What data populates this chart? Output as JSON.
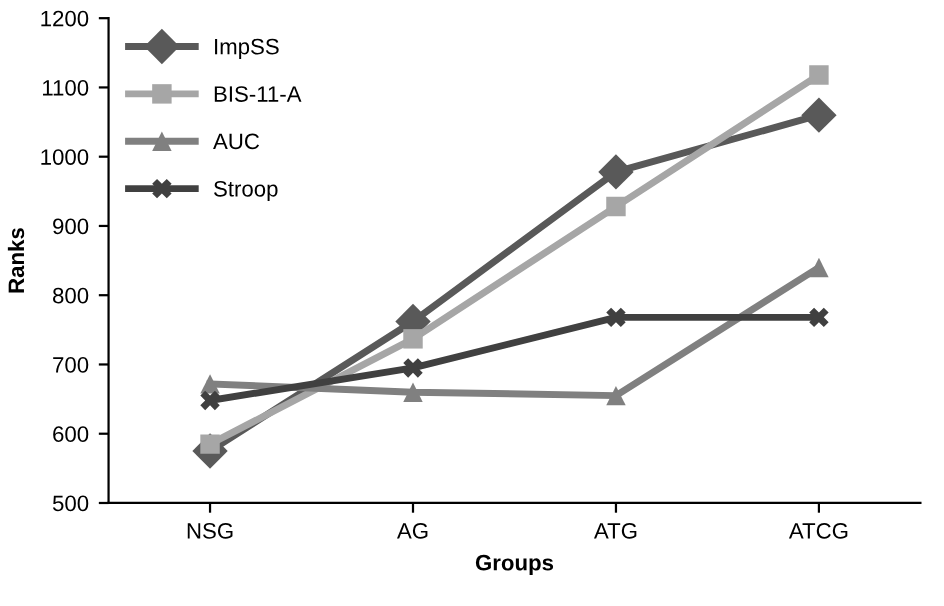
{
  "chart_data": {
    "type": "line",
    "xlabel": "Groups",
    "ylabel": "Ranks",
    "categories": [
      "NSG",
      "AG",
      "ATG",
      "ATCG"
    ],
    "series": [
      {
        "name": "ImpSS",
        "color": "#595959",
        "marker": "diamond",
        "values": [
          575,
          762,
          978,
          1060
        ]
      },
      {
        "name": "BIS-11-A",
        "color": "#a6a6a6",
        "marker": "square",
        "values": [
          585,
          737,
          928,
          1118
        ]
      },
      {
        "name": "AUC",
        "color": "#808080",
        "marker": "triangle",
        "values": [
          672,
          660,
          655,
          840
        ]
      },
      {
        "name": "Stroop",
        "color": "#404040",
        "marker": "cross",
        "values": [
          648,
          695,
          768,
          768
        ]
      }
    ],
    "ylim": [
      500,
      1200
    ],
    "yticks": [
      500,
      600,
      700,
      800,
      900,
      1000,
      1100,
      1200
    ],
    "grid": false,
    "legend": "top left"
  }
}
